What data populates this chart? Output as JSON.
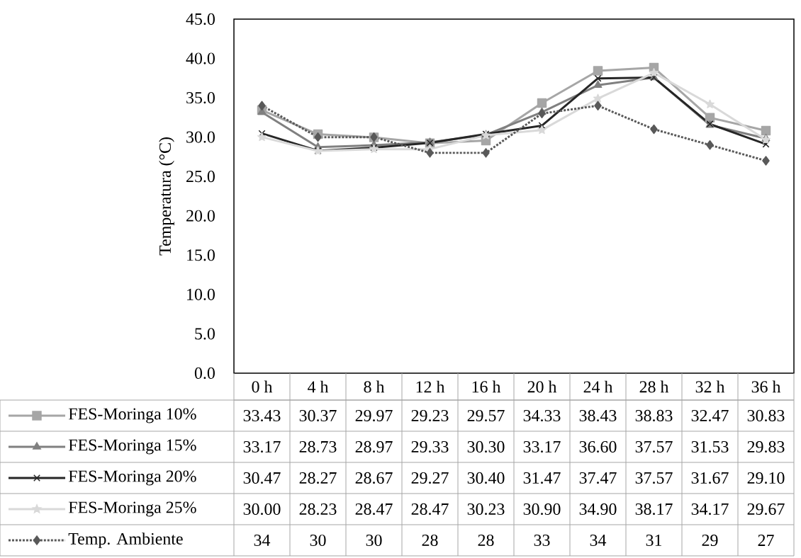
{
  "chart_data": {
    "type": "line",
    "ylabel": "Temperatura  (°C)",
    "categories": [
      "0 h",
      "4 h",
      "8 h",
      "12 h",
      "16 h",
      "20 h",
      "24 h",
      "28 h",
      "32 h",
      "36 h"
    ],
    "ylim": [
      0,
      45
    ],
    "yticks": [
      {
        "value": 0,
        "label": "0.0"
      },
      {
        "value": 5,
        "label": "5.0"
      },
      {
        "value": 10,
        "label": "10.0"
      },
      {
        "value": 15,
        "label": "15.0"
      },
      {
        "value": 20,
        "label": "20.0"
      },
      {
        "value": 25,
        "label": "25.0"
      },
      {
        "value": 30,
        "label": "30.0"
      },
      {
        "value": 35,
        "label": "35.0"
      },
      {
        "value": 40,
        "label": "40.0"
      },
      {
        "value": 45,
        "label": "45.0"
      }
    ],
    "grid": false,
    "legend": "bottom",
    "series": [
      {
        "name": "FES-Moringa 10%",
        "color": "#a6a6a6",
        "marker": "square",
        "line_style": "solid",
        "values": [
          33.43,
          30.37,
          29.97,
          29.23,
          29.57,
          34.33,
          38.43,
          38.83,
          32.47,
          30.83
        ],
        "value_labels": [
          "33.43",
          "30.37",
          "29.97",
          "29.23",
          "29.57",
          "34.33",
          "38.43",
          "38.83",
          "32.47",
          "30.83"
        ]
      },
      {
        "name": "FES-Moringa 15%",
        "color": "#808080",
        "marker": "triangle",
        "line_style": "solid",
        "values": [
          33.17,
          28.73,
          28.97,
          29.33,
          30.3,
          33.17,
          36.6,
          37.57,
          31.53,
          29.83
        ],
        "value_labels": [
          "33.17",
          "28.73",
          "28.97",
          "29.33",
          "30.30",
          "33.17",
          "36.60",
          "37.57",
          "31.53",
          "29.83"
        ]
      },
      {
        "name": "FES-Moringa 20%",
        "color": "#262626",
        "marker": "cross",
        "line_style": "solid",
        "values": [
          30.47,
          28.27,
          28.67,
          29.27,
          30.4,
          31.47,
          37.47,
          37.57,
          31.67,
          29.1
        ],
        "value_labels": [
          "30.47",
          "28.27",
          "28.67",
          "29.27",
          "30.40",
          "31.47",
          "37.47",
          "37.57",
          "31.67",
          "29.10"
        ]
      },
      {
        "name": "FES-Moringa 25%",
        "color": "#d9d9d9",
        "marker": "star",
        "line_style": "solid",
        "values": [
          30.0,
          28.23,
          28.47,
          28.47,
          30.23,
          30.9,
          34.9,
          38.17,
          34.17,
          29.67
        ],
        "value_labels": [
          "30.00",
          "28.23",
          "28.47",
          "28.47",
          "30.23",
          "30.90",
          "34.90",
          "38.17",
          "34.17",
          "29.67"
        ]
      },
      {
        "name": "Temp. Ambiente",
        "color": "#595959",
        "marker": "diamond",
        "line_style": "dotted",
        "values": [
          34,
          30,
          30,
          28,
          28,
          33,
          34,
          31,
          29,
          27
        ],
        "value_labels": [
          "34",
          "30",
          "30",
          "28",
          "28",
          "33",
          "34",
          "31",
          "29",
          "27"
        ]
      }
    ]
  }
}
